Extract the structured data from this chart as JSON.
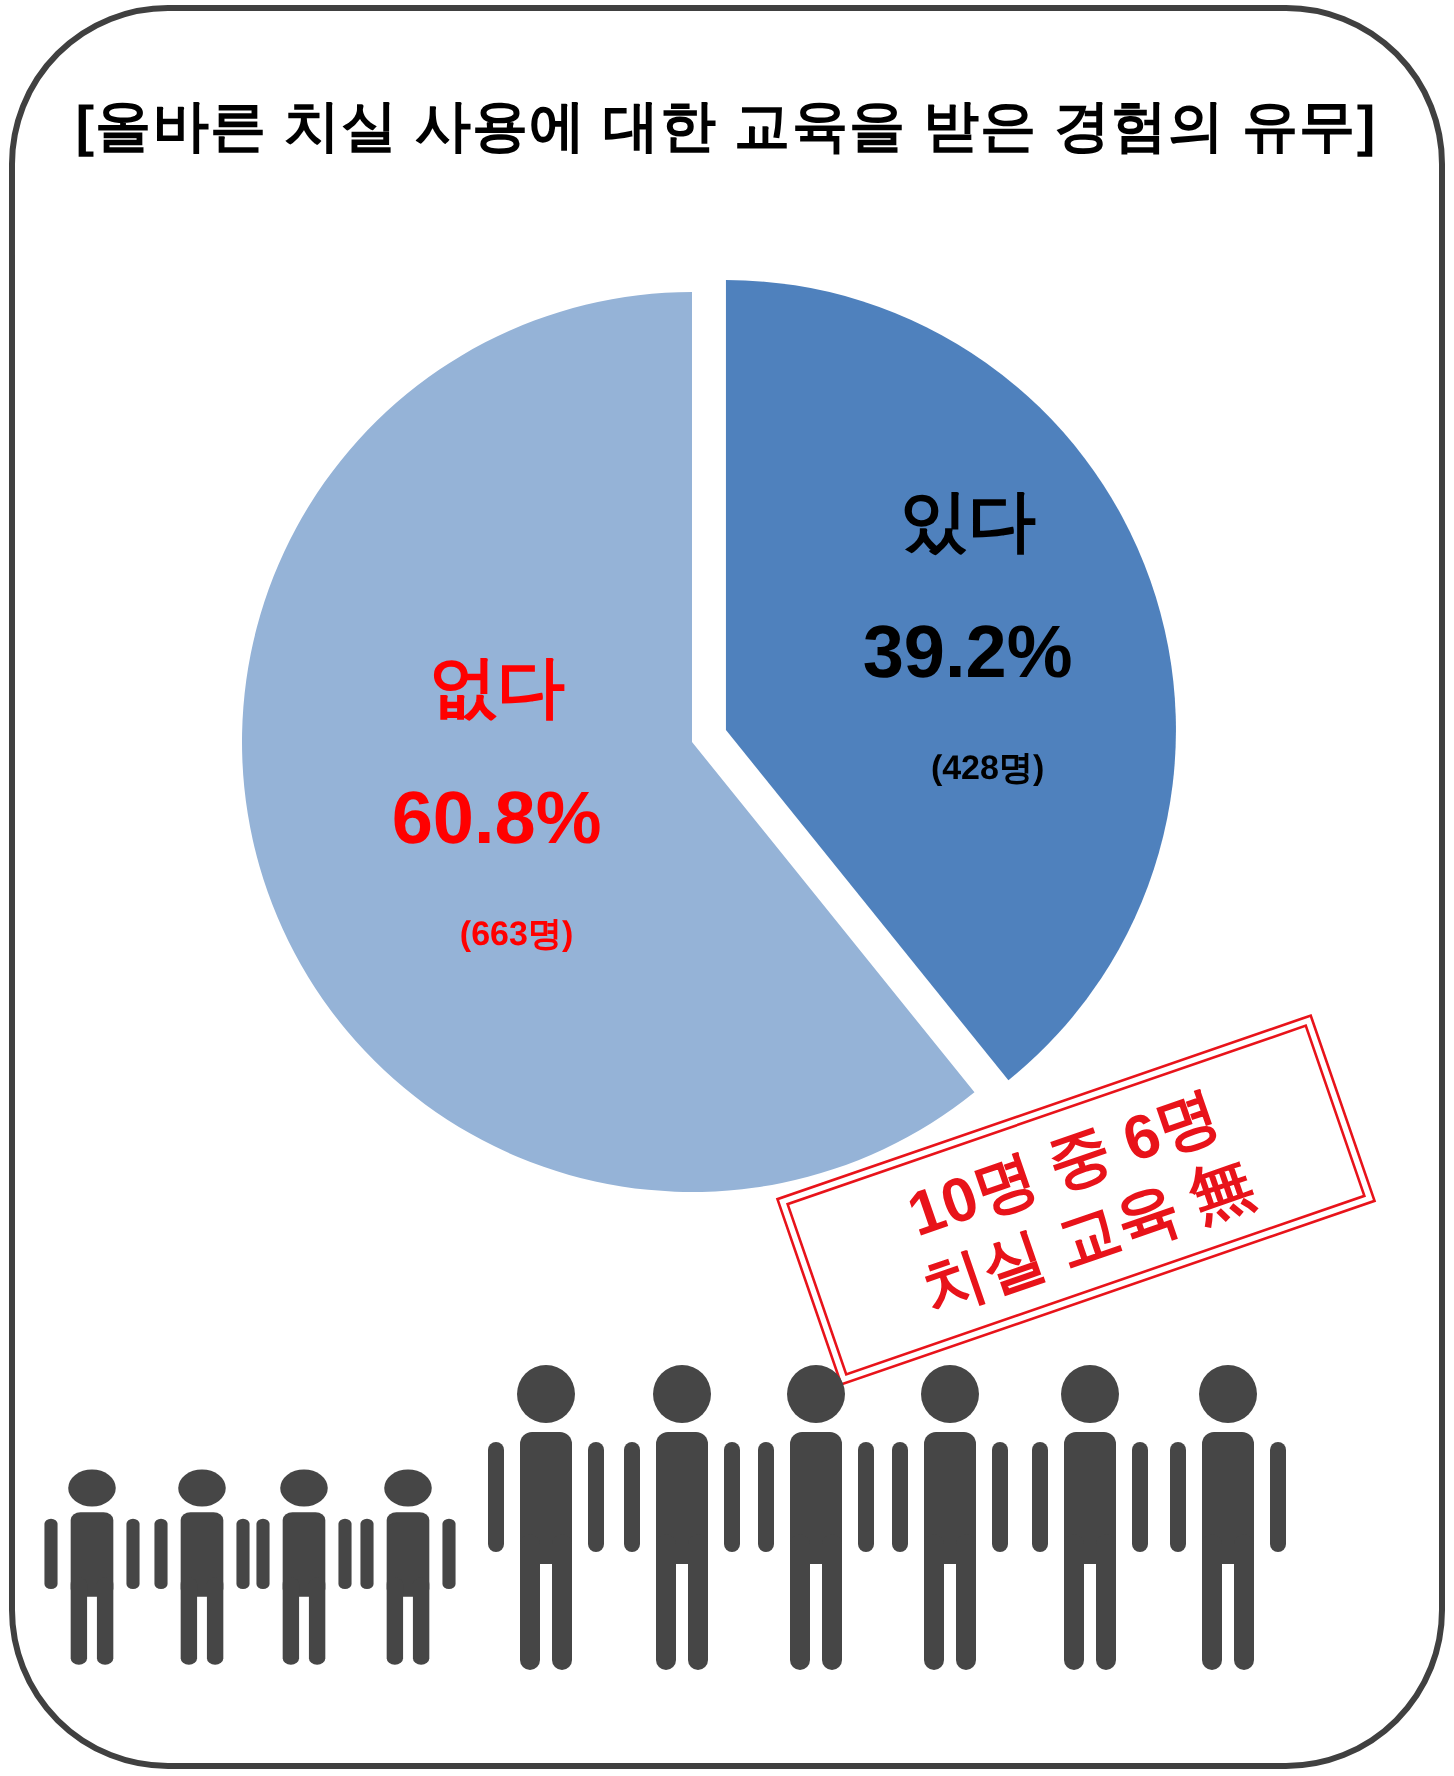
{
  "chart_data": {
    "type": "pie",
    "title": "[올바른 치실 사용에 대한 교육을 받은 경험의 유무]",
    "categories": [
      "있다",
      "없다"
    ],
    "values": [
      39.2,
      60.8
    ],
    "colors": [
      "#4f81bd",
      "#95b3d7"
    ],
    "value_labels": [
      "39.2%",
      "60.8%"
    ],
    "annotations": [
      "(428명)",
      "(663명)",
      "10명 중 6명\n치실 교육 無"
    ]
  }
}
